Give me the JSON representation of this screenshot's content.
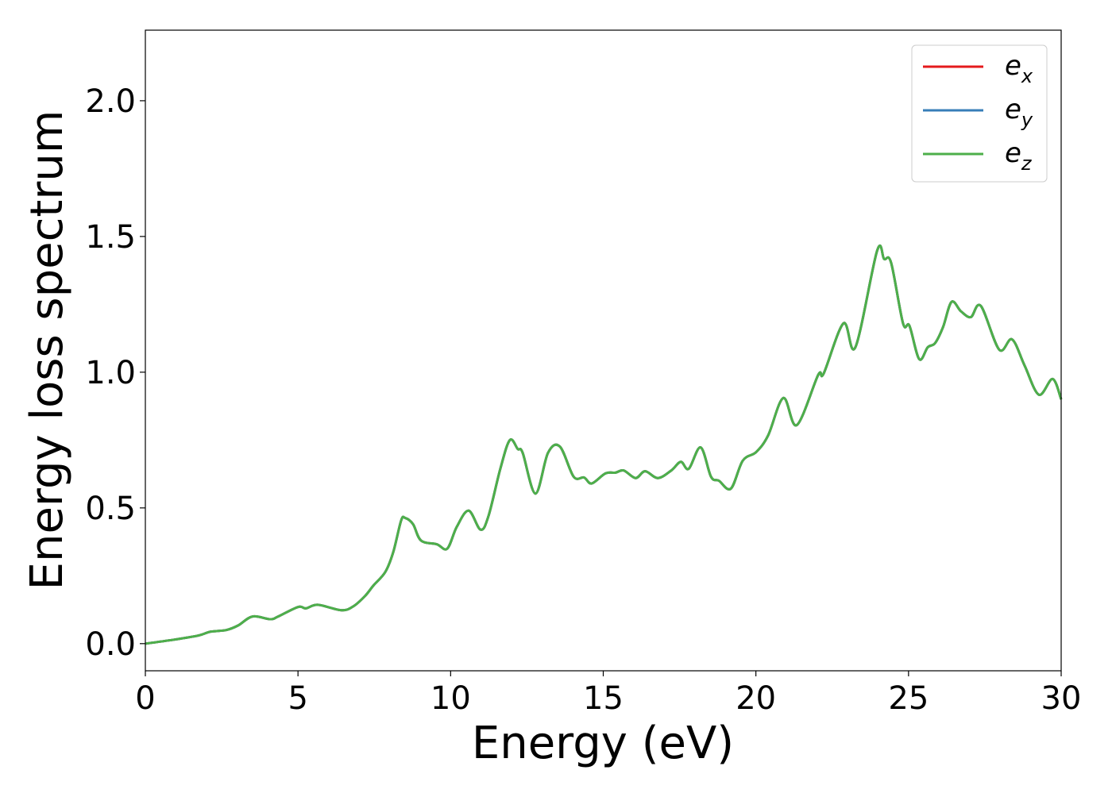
{
  "chart_data": {
    "type": "line",
    "title": "",
    "xlabel": "Energy (eV)",
    "ylabel": "Energy loss spectrum",
    "xlim": [
      0,
      30
    ],
    "ylim": [
      -0.1,
      2.26
    ],
    "xticks": [
      0,
      5,
      10,
      15,
      20,
      25,
      30
    ],
    "xtick_labels": [
      "0",
      "5",
      "10",
      "15",
      "20",
      "25",
      "30"
    ],
    "yticks": [
      0.0,
      0.5,
      1.0,
      1.5,
      2.0
    ],
    "ytick_labels": [
      "0.0",
      "0.5",
      "1.0",
      "1.5",
      "2.0"
    ],
    "grid": false,
    "legend_position": "top-right",
    "x": [
      0,
      0.96,
      1.74,
      2.13,
      2.65,
      3.04,
      3.51,
      4.09,
      4.35,
      5.0,
      5.26,
      5.65,
      6.43,
      6.82,
      7.2,
      7.47,
      7.86,
      8.12,
      8.38,
      8.51,
      8.77,
      9.03,
      9.55,
      9.89,
      10.2,
      10.59,
      10.98,
      11.24,
      11.63,
      11.94,
      12.2,
      12.36,
      12.78,
      13.19,
      13.58,
      14.03,
      14.37,
      14.62,
      15.07,
      15.4,
      15.67,
      16.06,
      16.37,
      16.79,
      17.23,
      17.54,
      17.8,
      18.19,
      18.53,
      18.79,
      19.18,
      19.57,
      20.01,
      20.4,
      20.9,
      21.34,
      22.04,
      22.22,
      22.87,
      23.26,
      23.97,
      24.2,
      24.43,
      24.82,
      25.03,
      25.35,
      25.63,
      25.87,
      26.13,
      26.41,
      26.72,
      27.04,
      27.37,
      27.97,
      28.39,
      28.8,
      29.27,
      29.72,
      30.0
    ],
    "y": [
      0,
      0.015,
      0.03,
      0.044,
      0.05,
      0.067,
      0.1,
      0.09,
      0.1,
      0.135,
      0.13,
      0.143,
      0.123,
      0.138,
      0.176,
      0.214,
      0.264,
      0.337,
      0.454,
      0.463,
      0.44,
      0.38,
      0.366,
      0.35,
      0.43,
      0.49,
      0.42,
      0.47,
      0.645,
      0.75,
      0.717,
      0.703,
      0.553,
      0.703,
      0.726,
      0.615,
      0.612,
      0.59,
      0.627,
      0.63,
      0.638,
      0.61,
      0.635,
      0.61,
      0.638,
      0.67,
      0.644,
      0.723,
      0.615,
      0.6,
      0.571,
      0.674,
      0.706,
      0.767,
      0.905,
      0.805,
      0.99,
      0.995,
      1.18,
      1.092,
      1.447,
      1.417,
      1.403,
      1.18,
      1.171,
      1.048,
      1.092,
      1.107,
      1.166,
      1.259,
      1.224,
      1.203,
      1.244,
      1.083,
      1.121,
      1.025,
      0.917,
      0.975,
      0.9
    ],
    "series": [
      {
        "name": "e_x",
        "label_base": "e",
        "label_sub": "x",
        "color": "#e41a1c"
      },
      {
        "name": "e_y",
        "label_base": "e",
        "label_sub": "y",
        "color": "#377eb8"
      },
      {
        "name": "e_z",
        "label_base": "e",
        "label_sub": "z",
        "color": "#4daf4a"
      }
    ]
  }
}
